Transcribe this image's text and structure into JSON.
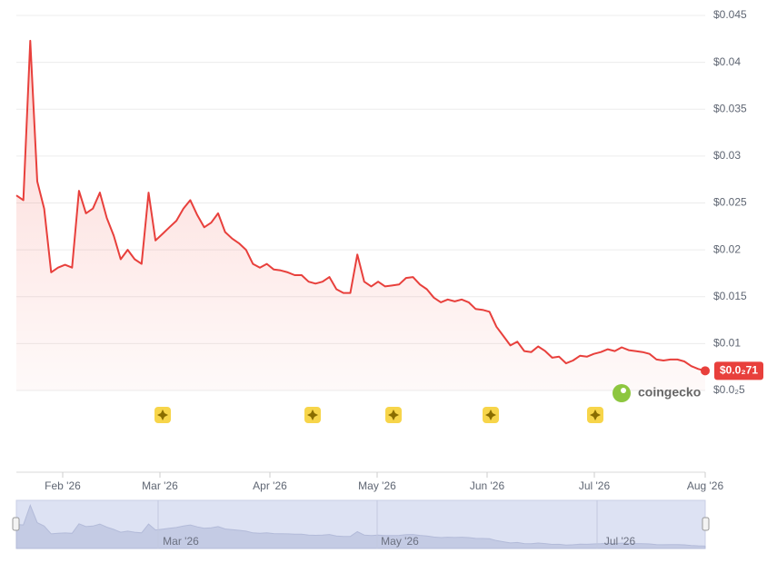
{
  "chart_data": {
    "type": "line",
    "color": "#e8403c",
    "values": [
      0.0258,
      0.0253,
      0.0423,
      0.0273,
      0.0244,
      0.0176,
      0.0181,
      0.0184,
      0.0181,
      0.0263,
      0.0239,
      0.0244,
      0.0261,
      0.0234,
      0.0215,
      0.019,
      0.02,
      0.019,
      0.0185,
      0.0261,
      0.021,
      0.0217,
      0.0224,
      0.0231,
      0.0244,
      0.0253,
      0.0237,
      0.0224,
      0.0229,
      0.0239,
      0.0219,
      0.0212,
      0.0207,
      0.02,
      0.0185,
      0.0181,
      0.0185,
      0.0179,
      0.0178,
      0.0176,
      0.0173,
      0.0173,
      0.0166,
      0.0164,
      0.0166,
      0.0171,
      0.0158,
      0.0154,
      0.0154,
      0.0195,
      0.0166,
      0.0161,
      0.0166,
      0.0161,
      0.0162,
      0.0163,
      0.017,
      0.0171,
      0.0163,
      0.0158,
      0.0149,
      0.0144,
      0.0147,
      0.0145,
      0.0147,
      0.0144,
      0.0137,
      0.0136,
      0.0134,
      0.0118,
      0.0108,
      0.0098,
      0.0102,
      0.0092,
      0.0091,
      0.0097,
      0.0092,
      0.0085,
      0.0086,
      0.0079,
      0.0082,
      0.0087,
      0.0086,
      0.0089,
      0.0091,
      0.0094,
      0.0092,
      0.0096,
      0.0093,
      0.0092,
      0.0091,
      0.0089,
      0.0083,
      0.0082,
      0.0083,
      0.0083,
      0.0081,
      0.0076,
      0.0073,
      0.0071
    ],
    "last_label": "$0.0₂71",
    "ylim": [
      0.005,
      0.045
    ],
    "yticks": [
      {
        "value": 0.045,
        "label": "$0.045"
      },
      {
        "value": 0.04,
        "label": "$0.04"
      },
      {
        "value": 0.035,
        "label": "$0.035"
      },
      {
        "value": 0.03,
        "label": "$0.03"
      },
      {
        "value": 0.025,
        "label": "$0.025"
      },
      {
        "value": 0.02,
        "label": "$0.02"
      },
      {
        "value": 0.015,
        "label": "$0.015"
      },
      {
        "value": 0.01,
        "label": "$0.01"
      },
      {
        "value": 0.005,
        "label": "$0.0₂5"
      }
    ],
    "xtick_labels": [
      "Feb '26",
      "Mar '26",
      "Apr '26",
      "May '26",
      "Jun '26",
      "Jul '26",
      "Aug '26"
    ],
    "navigator_labels": [
      "Mar '26",
      "May '26",
      "Jul '26"
    ],
    "grid": true,
    "watermark": "coingecko"
  }
}
